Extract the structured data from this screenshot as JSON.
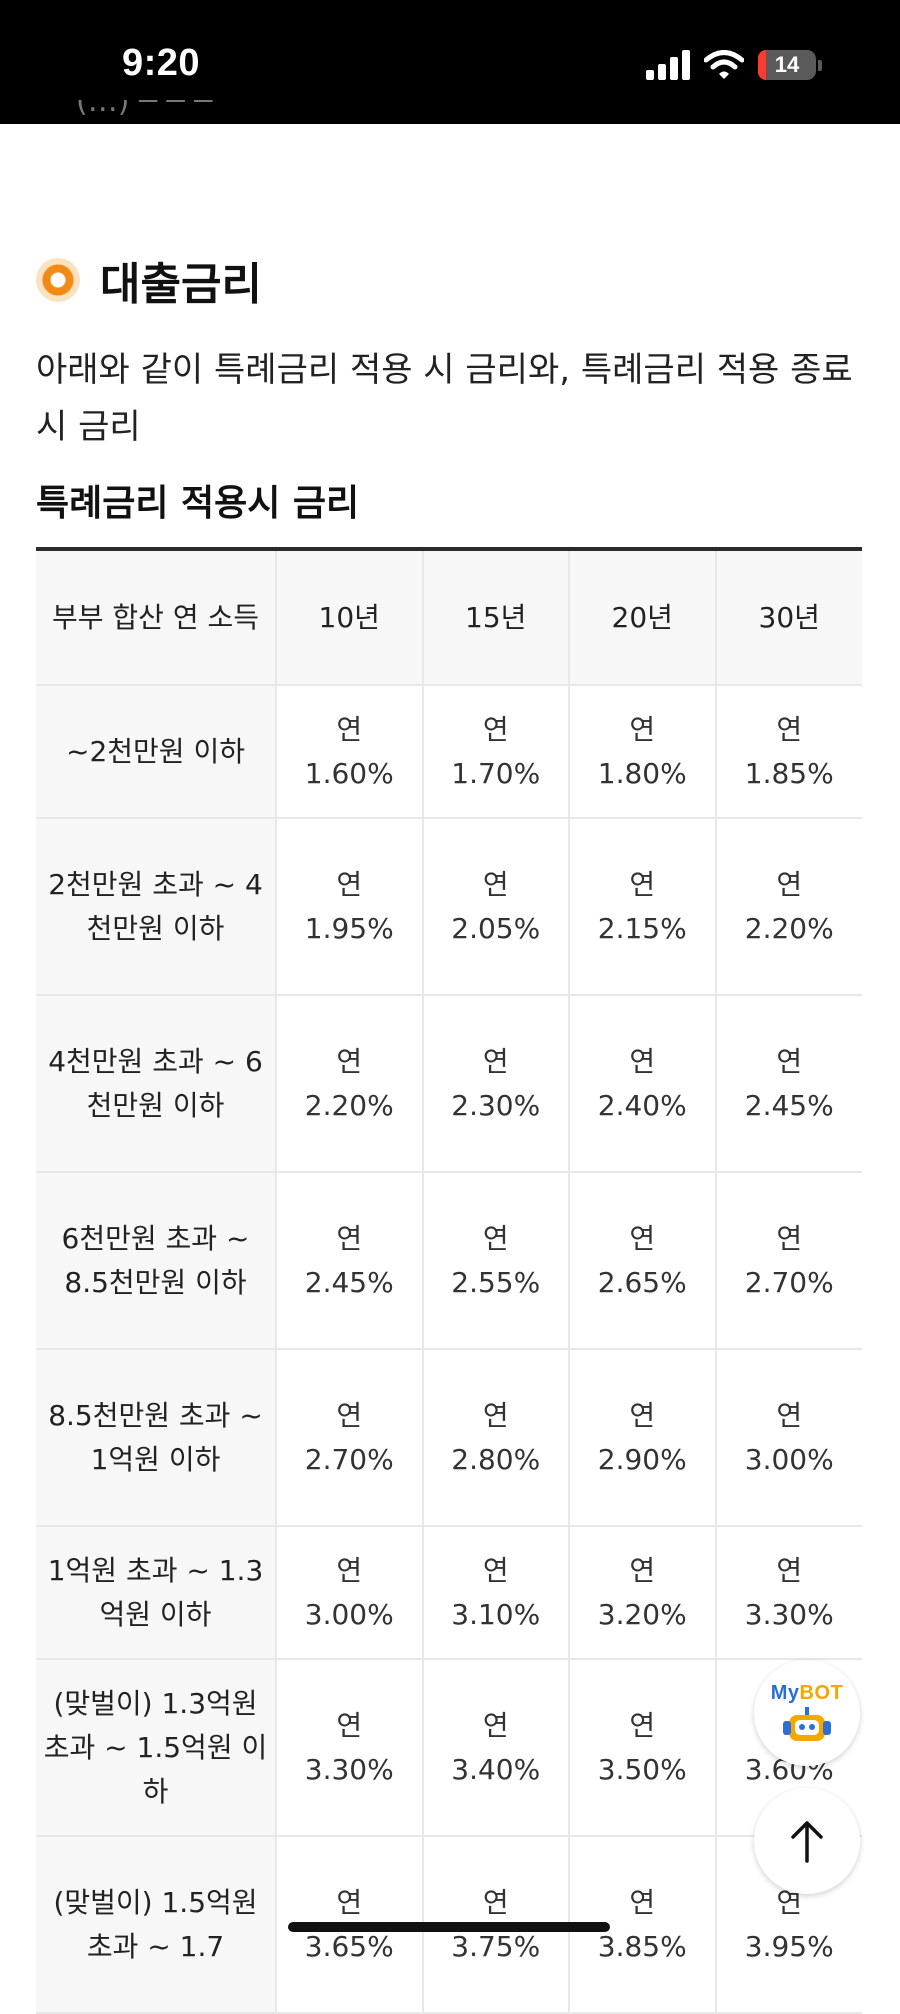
{
  "status_bar": {
    "time": "9:20",
    "battery": "14"
  },
  "section": {
    "title": "대출금리",
    "intro": "아래와 같이 특례금리 적용 시 금리와, 특례금리 적용 종료시 금리",
    "table_title": "특례금리 적용시 금리"
  },
  "table": {
    "header": [
      "부부 합산 연 소득",
      "10년",
      "15년",
      "20년",
      "30년"
    ],
    "rows": [
      {
        "income": "~2천만원 이하",
        "prefix": "연",
        "rates": [
          "1.60%",
          "1.70%",
          "1.80%",
          "1.85%"
        ]
      },
      {
        "income": "2천만원 초과 ~ 4천만원 이하",
        "prefix": "연",
        "rates": [
          "1.95%",
          "2.05%",
          "2.15%",
          "2.20%"
        ]
      },
      {
        "income": "4천만원 초과 ~ 6천만원 이하",
        "prefix": "연",
        "rates": [
          "2.20%",
          "2.30%",
          "2.40%",
          "2.45%"
        ]
      },
      {
        "income": "6천만원 초과 ~ 8.5천만원 이하",
        "prefix": "연",
        "rates": [
          "2.45%",
          "2.55%",
          "2.65%",
          "2.70%"
        ]
      },
      {
        "income": "8.5천만원 초과 ~ 1억원 이하",
        "prefix": "연",
        "rates": [
          "2.70%",
          "2.80%",
          "2.90%",
          "3.00%"
        ]
      },
      {
        "income": "1억원 초과 ~ 1.3억원 이하",
        "prefix": "연",
        "rates": [
          "3.00%",
          "3.10%",
          "3.20%",
          "3.30%"
        ]
      },
      {
        "income": "(맞벌이) 1.3억원 초과 ~ 1.5억원 이하",
        "prefix": "연",
        "rates": [
          "3.30%",
          "3.40%",
          "3.50%",
          "3.60%"
        ]
      },
      {
        "income": "(맞벌이) 1.5억원 초과 ~ 1.7",
        "prefix": "연",
        "rates": [
          "3.65%",
          "3.75%",
          "3.85%",
          "3.95%"
        ]
      }
    ]
  },
  "widgets": {
    "chatbot_label_a": "My",
    "chatbot_label_b": "BOT",
    "chatbot_icon": "robot-icon",
    "scroll_top_icon": "arrow-up-icon"
  },
  "colors": {
    "accent_orange": "#f28b16",
    "mybot_blue": "#2a6fd6",
    "mybot_yellow": "#f5a600"
  }
}
